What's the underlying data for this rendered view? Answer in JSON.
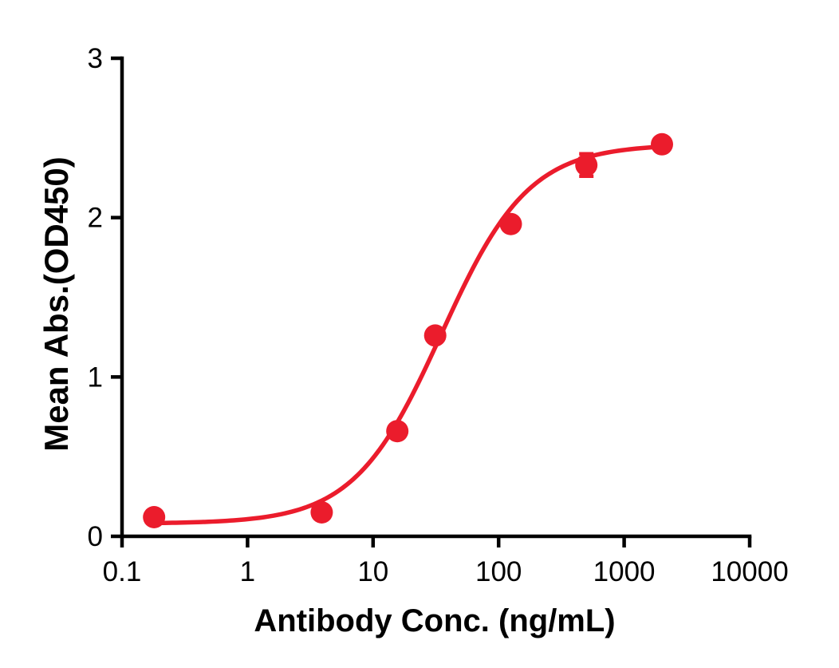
{
  "chart_data": {
    "type": "scatter",
    "subtype": "dose-response-curve",
    "title": "",
    "xlabel": "Antibody Conc. (ng/mL)",
    "ylabel": "Mean Abs.(OD450)",
    "x_scale": "log",
    "y_scale": "linear",
    "xlim": [
      0.1,
      10000
    ],
    "ylim": [
      0,
      3
    ],
    "x_tick_values": [
      0.1,
      1,
      10,
      100,
      1000,
      10000
    ],
    "x_tick_labels": [
      "0.1",
      "1",
      "10",
      "100",
      "1000",
      "10000"
    ],
    "y_tick_values": [
      0,
      1,
      2,
      3
    ],
    "y_tick_labels": [
      "0",
      "1",
      "2",
      "3"
    ],
    "grid": false,
    "legend_position": "none",
    "points": [
      {
        "x": 0.18,
        "y": 0.12
      },
      {
        "x": 3.9,
        "y": 0.15
      },
      {
        "x": 15.6,
        "y": 0.66
      },
      {
        "x": 31.25,
        "y": 1.26
      },
      {
        "x": 125,
        "y": 1.96
      },
      {
        "x": 500,
        "y": 2.33,
        "y_error": 0.07
      },
      {
        "x": 2000,
        "y": 2.46
      }
    ],
    "fit_curve": {
      "model": "4PL",
      "bottom": 0.08,
      "top": 2.46,
      "ec50": 35,
      "hill": 1.25,
      "x_start": 0.18,
      "x_end": 2000
    },
    "colors": {
      "series": "#EB1C2C",
      "axis": "#000000",
      "background": "#FFFFFF"
    }
  }
}
